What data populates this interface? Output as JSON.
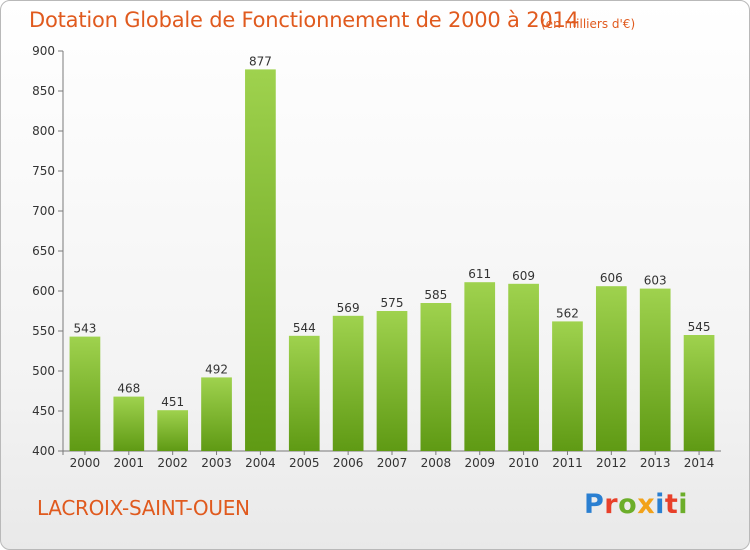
{
  "header": {
    "title": "Dotation Globale de Fonctionnement de 2000 à 2014",
    "unit": "(en milliers d'€)"
  },
  "footer": {
    "town": "LACROIX-SAINT-OUEN",
    "logo": "Proxiti"
  },
  "colors": {
    "accent": "#e05a1e",
    "bar_top": "#9fd24e",
    "bar_bottom": "#5f9a14"
  },
  "chart_data": {
    "type": "bar",
    "title": "Dotation Globale de Fonctionnement de 2000 à 2014",
    "subtitle": "(en milliers d'€)",
    "categories": [
      "2000",
      "2001",
      "2002",
      "2003",
      "2004",
      "2005",
      "2006",
      "2007",
      "2008",
      "2009",
      "2010",
      "2011",
      "2012",
      "2013",
      "2014"
    ],
    "values": [
      543,
      468,
      451,
      492,
      877,
      544,
      569,
      575,
      585,
      611,
      609,
      562,
      606,
      603,
      545
    ],
    "ylim": [
      400,
      900
    ],
    "yticks": [
      400,
      450,
      500,
      550,
      600,
      650,
      700,
      750,
      800,
      850,
      900
    ],
    "grid": false,
    "data_labels": true
  }
}
